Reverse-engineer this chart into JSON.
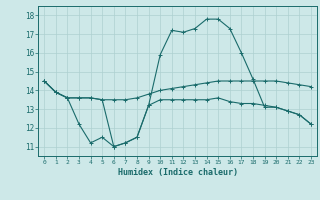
{
  "xlabel": "Humidex (Indice chaleur)",
  "x": [
    0,
    1,
    2,
    3,
    4,
    5,
    6,
    7,
    8,
    9,
    10,
    11,
    12,
    13,
    14,
    15,
    16,
    17,
    18,
    19,
    20,
    21,
    22,
    23
  ],
  "line1": [
    14.5,
    13.9,
    13.6,
    13.6,
    13.6,
    13.5,
    13.5,
    13.5,
    13.6,
    13.8,
    14.0,
    14.1,
    14.2,
    14.3,
    14.4,
    14.5,
    14.5,
    14.5,
    14.5,
    14.5,
    14.5,
    14.4,
    14.3,
    14.2
  ],
  "line2": [
    14.5,
    13.9,
    13.6,
    13.6,
    13.6,
    13.5,
    11.0,
    11.2,
    11.5,
    13.2,
    15.9,
    17.2,
    17.1,
    17.3,
    17.8,
    17.8,
    17.3,
    16.0,
    14.6,
    13.1,
    13.1,
    12.9,
    12.7,
    12.2
  ],
  "line3": [
    14.5,
    13.9,
    13.6,
    12.2,
    11.2,
    11.5,
    11.0,
    11.2,
    11.5,
    13.2,
    13.5,
    13.5,
    13.5,
    13.5,
    13.5,
    13.6,
    13.4,
    13.3,
    13.3,
    13.2,
    13.1,
    12.9,
    12.7,
    12.2
  ],
  "bg_color": "#cde8e8",
  "grid_color": "#aed0d0",
  "line_color": "#1a6b6b",
  "ylim": [
    10.5,
    18.5
  ],
  "xlim": [
    -0.5,
    23.5
  ]
}
